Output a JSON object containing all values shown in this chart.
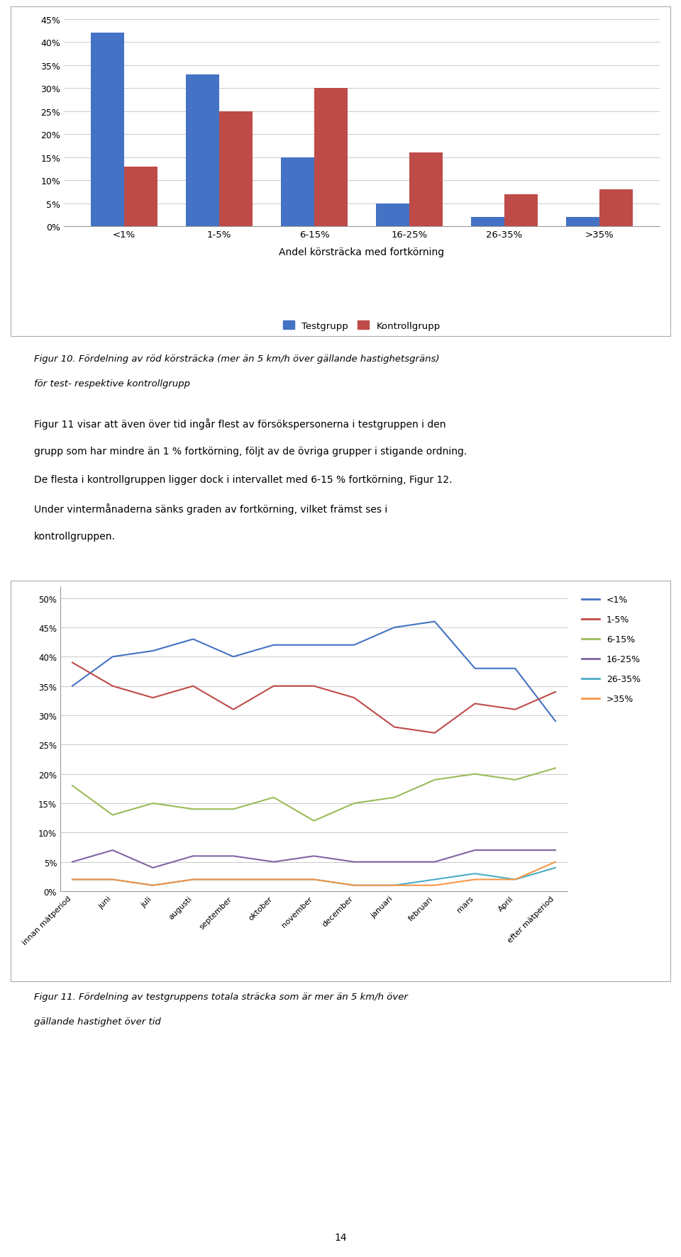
{
  "bar_categories": [
    "<1%",
    "1-5%",
    "6-15%",
    "16-25%",
    "26-35%",
    ">35%"
  ],
  "bar_testgrupp": [
    42,
    33,
    15,
    5,
    2,
    2
  ],
  "bar_kontrollgrupp": [
    13,
    25,
    30,
    16,
    7,
    8
  ],
  "bar_color_test": "#4472C4",
  "bar_color_control": "#BE4B48",
  "bar_xlabel": "Andel körsträcka med fortkörning",
  "bar_ylim": [
    0,
    47
  ],
  "bar_yticks": [
    0,
    5,
    10,
    15,
    20,
    25,
    30,
    35,
    40,
    45
  ],
  "bar_legend": [
    "Testgrupp",
    "Kontrollgrupp"
  ],
  "fig10_caption_line1": "Figur 10. Fördelning av röd körsträcka (mer än 5 km/h över gällande hastighetsgräns)",
  "fig10_caption_line2": "för test- respektive kontrollgrupp",
  "body_text_line1": "Figur 11 visar att även över tid ingår flest av försökspersonerna i testgruppen i den",
  "body_text_line2": "grupp som har mindre än 1 % fortkörning, följt av de övriga grupper i stigande ordning.",
  "body_text_line3": "De flesta i kontrollgruppen ligger dock i intervallet med 6-15 % fortkörning, Figur 12.",
  "body_text_line4": "Under vintermånaderna sänks graden av fortkörning, vilket främst ses i",
  "body_text_line5": "kontrollgruppen.",
  "line_xlabels": [
    "innan mätperiod",
    "juni",
    "juli",
    "augusti",
    "september",
    "oktober",
    "november",
    "december",
    "januari",
    "februari",
    "mars",
    "April",
    "efter mätperiod"
  ],
  "line_lt1": [
    35,
    40,
    41,
    43,
    40,
    42,
    42,
    42,
    45,
    46,
    38,
    38,
    29
  ],
  "line_1to5": [
    39,
    35,
    33,
    35,
    31,
    35,
    35,
    33,
    28,
    27,
    32,
    31,
    34
  ],
  "line_6to15": [
    18,
    13,
    15,
    14,
    14,
    16,
    12,
    15,
    16,
    19,
    20,
    19,
    21
  ],
  "line_16to25": [
    5,
    7,
    4,
    6,
    6,
    5,
    6,
    5,
    5,
    5,
    7,
    7,
    7
  ],
  "line_26to35": [
    2,
    2,
    1,
    2,
    2,
    2,
    2,
    1,
    1,
    2,
    3,
    2,
    4
  ],
  "line_gt35": [
    2,
    2,
    1,
    2,
    2,
    2,
    2,
    1,
    1,
    1,
    2,
    2,
    5
  ],
  "line_color_lt1": "#4472C4",
  "line_color_1to5": "#BE4B48",
  "line_color_6to15": "#9BBB59",
  "line_color_16to25": "#8064A2",
  "line_color_26to35": "#4BACC6",
  "line_color_gt35": "#F79646",
  "line_ylim": [
    0,
    52
  ],
  "line_yticks": [
    0,
    5,
    10,
    15,
    20,
    25,
    30,
    35,
    40,
    45,
    50
  ],
  "line_legend_labels": [
    "<1%",
    "1-5%",
    "6-15%",
    "16-25%",
    "26-35%",
    ">35%"
  ],
  "fig11_caption_line1": "Figur 11. Fördelning av testgruppens totala sträcka som är mer än 5 km/h över",
  "fig11_caption_line2": "gällande hastighet över tid",
  "page_number": "14",
  "background_color": "#FFFFFF",
  "grid_color": "#C0C0C0",
  "border_color": "#999999"
}
